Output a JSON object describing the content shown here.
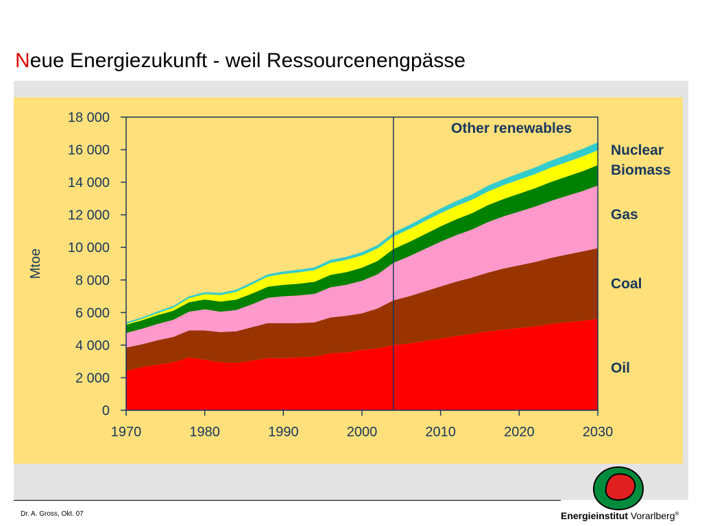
{
  "slide": {
    "title_first_letter": "N",
    "title_rest": "eue Energiezukunft - weil Ressourcenengpässe",
    "title_first_color": "#e00000",
    "footer_author": "Dr. A. Gross, Okt. 07",
    "brand_bold": "Energieinstitut",
    "brand_regular": "Vorarlberg",
    "brand_mark": "®"
  },
  "colors": {
    "panel_background": "#ffe07a",
    "band_background": "#e4e4e4",
    "text_blue": "#17375e"
  },
  "chart_data": {
    "type": "area",
    "stacked": true,
    "ylabel": "Mtoe",
    "xlabel": "",
    "xlim": [
      1970,
      2030
    ],
    "ylim": [
      0,
      18000
    ],
    "x_ticks": [
      1970,
      1980,
      1990,
      2000,
      2010,
      2020,
      2030
    ],
    "x_tick_labels": [
      "1970",
      "1980",
      "1990",
      "2000",
      "2010",
      "2020",
      "2030"
    ],
    "y_ticks": [
      0,
      2000,
      4000,
      6000,
      8000,
      10000,
      12000,
      14000,
      16000,
      18000
    ],
    "y_tick_labels": [
      "0",
      "2 000",
      "4 000",
      "6 000",
      "8 000",
      "10 000",
      "12 000",
      "14 000",
      "16 000",
      "18 000"
    ],
    "grid": false,
    "divider_year": 2004,
    "x": [
      1970,
      1972,
      1974,
      1976,
      1978,
      1980,
      1982,
      1984,
      1986,
      1988,
      1990,
      1992,
      1994,
      1996,
      1998,
      2000,
      2002,
      2004,
      2006,
      2008,
      2010,
      2012,
      2014,
      2016,
      2018,
      2020,
      2022,
      2024,
      2026,
      2028,
      2030
    ],
    "series": [
      {
        "name": "Oil",
        "color": "#ff0000",
        "values": [
          2400,
          2650,
          2800,
          2950,
          3250,
          3100,
          2950,
          2900,
          3050,
          3200,
          3200,
          3250,
          3300,
          3500,
          3550,
          3700,
          3800,
          4000,
          4100,
          4250,
          4400,
          4550,
          4700,
          4850,
          4950,
          5050,
          5150,
          5300,
          5400,
          5500,
          5600
        ]
      },
      {
        "name": "Coal",
        "color": "#993300",
        "values": [
          1450,
          1400,
          1500,
          1550,
          1650,
          1800,
          1850,
          1950,
          2050,
          2150,
          2150,
          2100,
          2100,
          2200,
          2250,
          2250,
          2450,
          2750,
          2900,
          3050,
          3200,
          3350,
          3450,
          3600,
          3750,
          3850,
          3950,
          4050,
          4150,
          4250,
          4350
        ]
      },
      {
        "name": "Gas",
        "color": "#ff99cc",
        "values": [
          900,
          950,
          1000,
          1050,
          1150,
          1300,
          1250,
          1300,
          1400,
          1550,
          1650,
          1700,
          1750,
          1850,
          1900,
          2000,
          2100,
          2300,
          2450,
          2600,
          2750,
          2850,
          2950,
          3100,
          3200,
          3300,
          3400,
          3500,
          3600,
          3700,
          3850
        ]
      },
      {
        "name": "Biomass",
        "color": "#008000",
        "values": [
          500,
          520,
          540,
          560,
          580,
          600,
          620,
          640,
          660,
          680,
          700,
          720,
          740,
          760,
          780,
          800,
          820,
          850,
          880,
          910,
          940,
          970,
          1000,
          1040,
          1070,
          1100,
          1130,
          1160,
          1190,
          1220,
          1250
        ]
      },
      {
        "name": "Nuclear",
        "color": "#ffff00",
        "values": [
          50,
          80,
          120,
          180,
          250,
          330,
          400,
          480,
          560,
          620,
          670,
          700,
          720,
          740,
          750,
          760,
          770,
          780,
          790,
          800,
          810,
          820,
          830,
          840,
          850,
          860,
          870,
          880,
          890,
          900,
          910
        ]
      },
      {
        "name": "Other renewables",
        "color": "#33cccc",
        "values": [
          100,
          100,
          110,
          110,
          120,
          120,
          130,
          130,
          140,
          150,
          150,
          160,
          170,
          180,
          190,
          200,
          210,
          230,
          250,
          270,
          290,
          310,
          330,
          350,
          370,
          390,
          410,
          430,
          450,
          470,
          490
        ]
      }
    ]
  }
}
